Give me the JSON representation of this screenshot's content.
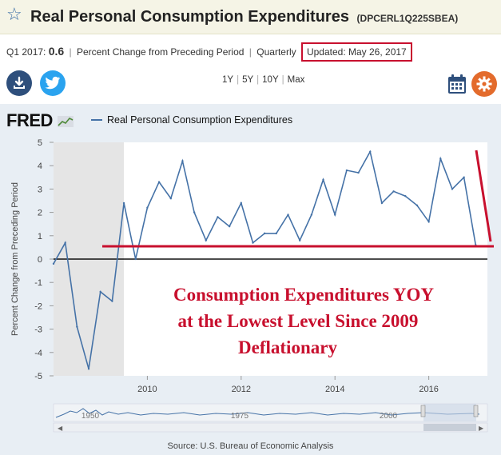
{
  "header": {
    "title": "Real Personal Consumption Expenditures",
    "series_id": "(DPCERL1Q225SBEA)"
  },
  "meta": {
    "period": "Q1 2017:",
    "value": "0.6",
    "units": "Percent Change from Preceding Period",
    "frequency": "Quarterly",
    "updated": "Updated: May 26, 2017"
  },
  "ranges": [
    "1Y",
    "5Y",
    "10Y",
    "Max"
  ],
  "icons": {
    "download": "download-icon",
    "twitter": "twitter-icon",
    "calendar": "calendar-icon",
    "settings": "gear-icon"
  },
  "colors": {
    "series_line": "#4572a7",
    "annotation_red": "#c8102e",
    "recession_shade": "#e5e5e5",
    "header_bg": "#f5f4e6"
  },
  "logo": "FRED",
  "source": "Source: U.S. Bureau of Economic Analysis",
  "annotation": {
    "lines": [
      "Consumption Expenditures YOY",
      "at the Lowest Level Since 2009",
      "Deflationary"
    ]
  },
  "chart_data": {
    "type": "line",
    "title": "",
    "xlabel": "",
    "ylabel": "Percent Change from Preceding Period",
    "legend": "Real Personal Consumption Expenditures",
    "xlim": [
      2008.0,
      2017.25
    ],
    "ylim": [
      -5,
      5
    ],
    "yticks": [
      -5,
      -4,
      -3,
      -2,
      -1,
      0,
      1,
      2,
      3,
      4,
      5
    ],
    "xticks": [
      2010,
      2012,
      2014,
      2016
    ],
    "grid": false,
    "recession": [
      2008.0,
      2009.5
    ],
    "navigator_labels": [
      "1950",
      "1975",
      "2000"
    ],
    "series": [
      {
        "name": "Real Personal Consumption Expenditures",
        "x": [
          2008.0,
          2008.25,
          2008.5,
          2008.75,
          2009.0,
          2009.25,
          2009.5,
          2009.75,
          2010.0,
          2010.25,
          2010.5,
          2010.75,
          2011.0,
          2011.25,
          2011.5,
          2011.75,
          2012.0,
          2012.25,
          2012.5,
          2012.75,
          2013.0,
          2013.25,
          2013.5,
          2013.75,
          2014.0,
          2014.25,
          2014.5,
          2014.75,
          2015.0,
          2015.25,
          2015.5,
          2015.75,
          2016.0,
          2016.25,
          2016.5,
          2016.75,
          2017.0
        ],
        "y": [
          -0.2,
          0.7,
          -2.9,
          -4.7,
          -1.4,
          -1.8,
          2.4,
          0.0,
          2.2,
          3.3,
          2.6,
          4.2,
          2.0,
          0.8,
          1.8,
          1.4,
          2.4,
          0.7,
          1.1,
          1.1,
          1.9,
          0.8,
          1.9,
          3.4,
          1.9,
          3.8,
          3.7,
          4.6,
          2.4,
          2.9,
          2.7,
          2.3,
          1.6,
          4.3,
          3.0,
          3.5,
          0.6
        ]
      }
    ]
  }
}
